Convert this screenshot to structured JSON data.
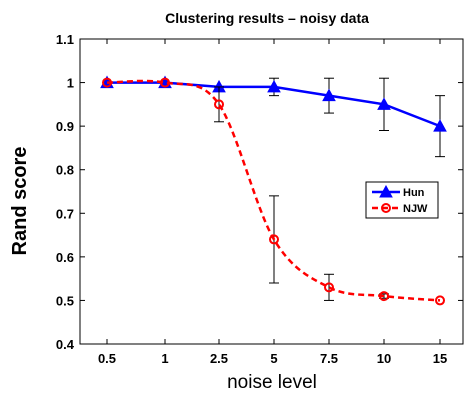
{
  "chart_data": {
    "type": "line",
    "title": "Clustering results – noisy data",
    "xlabel": "noise level",
    "ylabel": "Rand score",
    "categories": [
      "0.5",
      "1",
      "2.5",
      "5",
      "7.5",
      "10",
      "15"
    ],
    "ylim": [
      0.4,
      1.1
    ],
    "yticks": [
      "0.4",
      "0.5",
      "0.6",
      "0.7",
      "0.8",
      "0.9",
      "1",
      "1.1"
    ],
    "grid": false,
    "legend_position": "middle-right",
    "series": [
      {
        "name": "Hun",
        "color": "#0000ff",
        "style": "solid",
        "marker": "triangle",
        "values": [
          1.0,
          1.0,
          0.99,
          0.99,
          0.97,
          0.95,
          0.9
        ],
        "errors": [
          0.0,
          0.0,
          0.0,
          0.02,
          0.04,
          0.06,
          0.07
        ]
      },
      {
        "name": "NJW",
        "color": "#ff0000",
        "style": "dashed",
        "marker": "circle",
        "values": [
          1.0,
          1.0,
          0.95,
          0.64,
          0.53,
          0.51,
          0.5
        ],
        "errors": [
          0.0,
          0.0,
          0.04,
          0.1,
          0.03,
          0.005,
          0.0
        ]
      }
    ]
  }
}
